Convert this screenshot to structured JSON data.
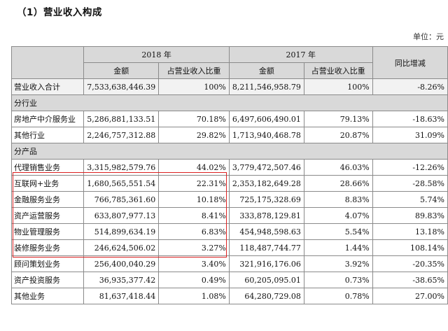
{
  "heading": "（1）营业收入构成",
  "unit": "单位：元",
  "header": {
    "year_2018": "2018 年",
    "year_2017": "2017 年",
    "yoy": "同比增减",
    "amount": "金额",
    "ratio": "占营业收入比重"
  },
  "total_row": {
    "label": "营业收入合计",
    "amt2018": "7,533,638,446.39",
    "pct2018": "100%",
    "amt2017": "8,211,546,958.79",
    "pct2017": "100%",
    "yoy": "-8.26%"
  },
  "section_industry": "分行业",
  "industry_rows": [
    {
      "label": "房地产中介服务业",
      "amt2018": "5,286,881,133.51",
      "pct2018": "70.18%",
      "amt2017": "6,497,606,490.01",
      "pct2017": "79.13%",
      "yoy": "-18.63%"
    },
    {
      "label": "其他行业",
      "amt2018": "2,246,757,312.88",
      "pct2018": "29.82%",
      "amt2017": "1,713,940,468.78",
      "pct2017": "20.87%",
      "yoy": "31.09%"
    }
  ],
  "section_product": "分产品",
  "product_rows": [
    {
      "label": "代理销售业务",
      "amt2018": "3,315,982,579.76",
      "pct2018": "44.02%",
      "amt2017": "3,779,472,507.46",
      "pct2017": "46.03%",
      "yoy": "-12.26%"
    },
    {
      "label": "互联网+业务",
      "amt2018": "1,680,565,551.54",
      "pct2018": "22.31%",
      "amt2017": "2,353,182,649.28",
      "pct2017": "28.66%",
      "yoy": "-28.58%"
    },
    {
      "label": "金融服务业务",
      "amt2018": "766,785,361.60",
      "pct2018": "10.18%",
      "amt2017": "725,175,328.69",
      "pct2017": "8.83%",
      "yoy": "5.74%"
    },
    {
      "label": "资产运营服务",
      "amt2018": "633,807,977.13",
      "pct2018": "8.41%",
      "amt2017": "333,878,129.81",
      "pct2017": "4.07%",
      "yoy": "89.83%"
    },
    {
      "label": "物业管理服务",
      "amt2018": "514,899,634.19",
      "pct2018": "6.83%",
      "amt2017": "454,948,598.63",
      "pct2017": "5.54%",
      "yoy": "13.18%"
    },
    {
      "label": "装修服务业务",
      "amt2018": "246,624,506.02",
      "pct2018": "3.27%",
      "amt2017": "118,487,744.77",
      "pct2017": "1.44%",
      "yoy": "108.14%"
    },
    {
      "label": "顾问策划业务",
      "amt2018": "256,400,040.29",
      "pct2018": "3.40%",
      "amt2017": "321,916,176.06",
      "pct2017": "3.92%",
      "yoy": "-20.35%"
    },
    {
      "label": "资产投资服务",
      "amt2018": "36,935,377.42",
      "pct2018": "0.49%",
      "amt2017": "60,205,095.01",
      "pct2017": "0.73%",
      "yoy": "-38.65%"
    },
    {
      "label": "其他业务",
      "amt2018": "81,637,418.44",
      "pct2018": "1.08%",
      "amt2017": "64,280,729.08",
      "pct2017": "0.78%",
      "yoy": "27.00%"
    }
  ]
}
